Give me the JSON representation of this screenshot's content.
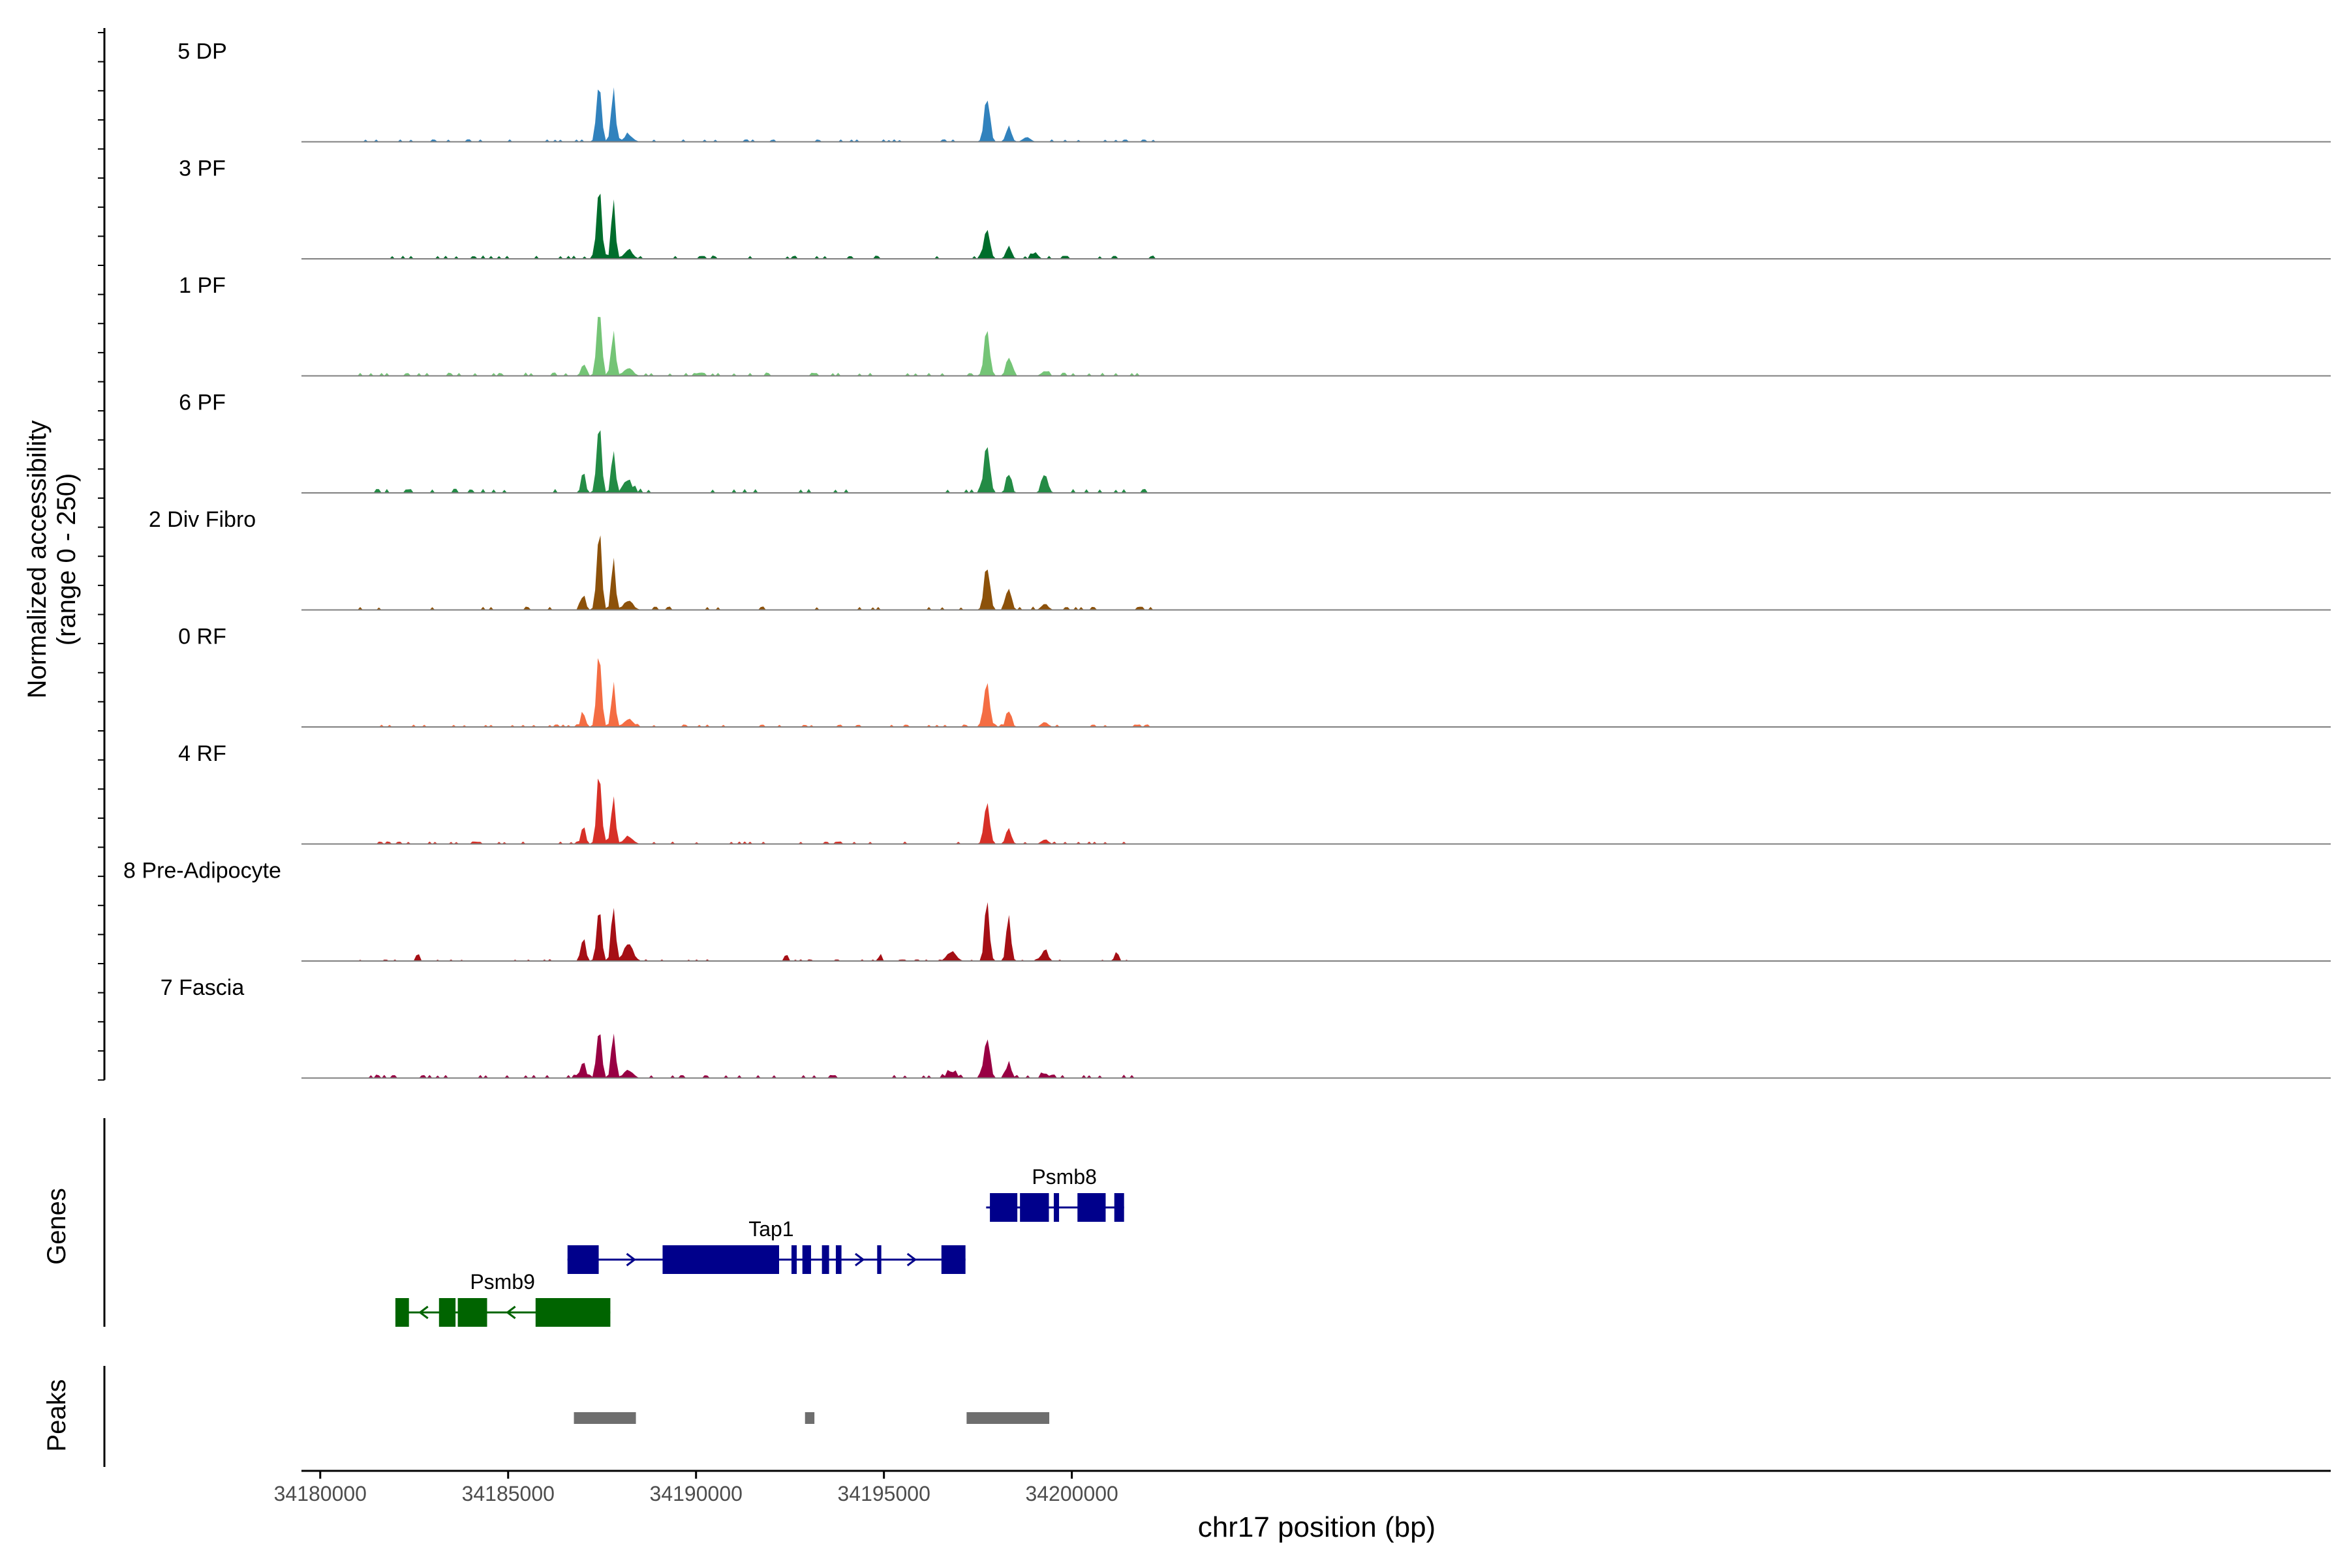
{
  "chart_data": {
    "type": "area",
    "title": "",
    "xlabel": "chr17 position (bp)",
    "ylabel_line1": "Normalized accessibility",
    "ylabel_line2": "(range 0 - 250)",
    "y_range": [
      0,
      250
    ],
    "x_range": [
      34179500,
      34233500
    ],
    "x_ticks": [
      {
        "value": 34180000,
        "label": "34180000"
      },
      {
        "value": 34185000,
        "label": "34185000"
      },
      {
        "value": 34190000,
        "label": "34190000"
      },
      {
        "value": 34195000,
        "label": "34195000"
      },
      {
        "value": 34200000,
        "label": "34200000"
      }
    ],
    "tracks": [
      {
        "name": "5 DP",
        "color": "#3182BD",
        "base_noise": 0.03,
        "peaks": [
          [
            34187420,
            65,
            0.8
          ],
          [
            34187800,
            55,
            0.68
          ],
          [
            34188200,
            120,
            0.08
          ],
          [
            34197740,
            75,
            0.55
          ],
          [
            34198320,
            70,
            0.2
          ],
          [
            34198800,
            100,
            0.06
          ]
        ]
      },
      {
        "name": "3 PF",
        "color": "#006D2C",
        "base_noise": 0.04,
        "peaks": [
          [
            34187420,
            65,
            0.9
          ],
          [
            34187800,
            55,
            0.72
          ],
          [
            34188200,
            120,
            0.1
          ],
          [
            34197740,
            75,
            0.42
          ],
          [
            34198320,
            70,
            0.16
          ],
          [
            34199020,
            80,
            0.08
          ]
        ]
      },
      {
        "name": "1 PF",
        "color": "#74C476",
        "base_noise": 0.04,
        "peaks": [
          [
            34187420,
            65,
            0.92
          ],
          [
            34187800,
            55,
            0.62
          ],
          [
            34187000,
            60,
            0.15
          ],
          [
            34188200,
            120,
            0.1
          ],
          [
            34197740,
            75,
            0.55
          ],
          [
            34198320,
            70,
            0.25
          ],
          [
            34199280,
            90,
            0.06
          ]
        ]
      },
      {
        "name": "6 PF",
        "color": "#238B45",
        "base_noise": 0.05,
        "peaks": [
          [
            34187420,
            65,
            0.85
          ],
          [
            34187800,
            55,
            0.55
          ],
          [
            34187000,
            60,
            0.22
          ],
          [
            34188200,
            120,
            0.12
          ],
          [
            34197740,
            75,
            0.65
          ],
          [
            34198320,
            70,
            0.22
          ],
          [
            34199280,
            80,
            0.22
          ]
        ]
      },
      {
        "name": "2 Div Fibro",
        "color": "#8C510A",
        "base_noise": 0.04,
        "peaks": [
          [
            34187420,
            65,
            1.0
          ],
          [
            34187800,
            55,
            0.65
          ],
          [
            34187000,
            60,
            0.2
          ],
          [
            34188200,
            120,
            0.12
          ],
          [
            34197740,
            75,
            0.58
          ],
          [
            34198320,
            70,
            0.28
          ],
          [
            34199280,
            90,
            0.08
          ]
        ]
      },
      {
        "name": "0 RF",
        "color": "#F46D43",
        "base_noise": 0.03,
        "peaks": [
          [
            34187420,
            65,
            0.93
          ],
          [
            34187800,
            55,
            0.55
          ],
          [
            34187000,
            60,
            0.18
          ],
          [
            34188200,
            120,
            0.1
          ],
          [
            34197740,
            75,
            0.55
          ],
          [
            34198320,
            70,
            0.2
          ],
          [
            34199280,
            90,
            0.06
          ]
        ]
      },
      {
        "name": "4 RF",
        "color": "#D73027",
        "base_noise": 0.03,
        "peaks": [
          [
            34187420,
            65,
            0.9
          ],
          [
            34187800,
            55,
            0.63
          ],
          [
            34187000,
            60,
            0.2
          ],
          [
            34188200,
            120,
            0.1
          ],
          [
            34197740,
            75,
            0.52
          ],
          [
            34198320,
            70,
            0.2
          ],
          [
            34199280,
            90,
            0.06
          ]
        ]
      },
      {
        "name": "8 Pre-Adipocyte",
        "color": "#A50F15",
        "base_noise": 0.02,
        "peaks": [
          [
            34187420,
            65,
            0.62
          ],
          [
            34187800,
            55,
            0.75
          ],
          [
            34187000,
            60,
            0.3
          ],
          [
            34188200,
            120,
            0.22
          ],
          [
            34182600,
            40,
            0.1
          ],
          [
            34192400,
            40,
            0.1
          ],
          [
            34194900,
            40,
            0.1
          ],
          [
            34196800,
            120,
            0.12
          ],
          [
            34197740,
            60,
            0.8
          ],
          [
            34198320,
            60,
            0.55
          ],
          [
            34199280,
            80,
            0.15
          ],
          [
            34201200,
            40,
            0.14
          ]
        ]
      },
      {
        "name": "7 Fascia",
        "color": "#980043",
        "base_noise": 0.04,
        "peaks": [
          [
            34187420,
            65,
            0.65
          ],
          [
            34187800,
            55,
            0.62
          ],
          [
            34187000,
            60,
            0.22
          ],
          [
            34188200,
            120,
            0.1
          ],
          [
            34197740,
            75,
            0.55
          ],
          [
            34198320,
            70,
            0.18
          ],
          [
            34196800,
            120,
            0.08
          ],
          [
            34199280,
            90,
            0.06
          ]
        ]
      }
    ],
    "genes": {
      "label": "Genes",
      "items": [
        {
          "name": "Psmb8",
          "strand": "-",
          "color": "#00008B",
          "row": 0,
          "start": 34197720,
          "end": 34201390,
          "exons": [
            [
              34197820,
              34198550
            ],
            [
              34198620,
              34199390
            ],
            [
              34199520,
              34199660
            ],
            [
              34200150,
              34200900
            ],
            [
              34201130,
              34201390
            ]
          ]
        },
        {
          "name": "Tap1",
          "strand": "+",
          "color": "#00008B",
          "row": 1,
          "start": 34186580,
          "end": 34197170,
          "exons": [
            [
              34186580,
              34187410
            ],
            [
              34189110,
              34192210
            ],
            [
              34192540,
              34192680
            ],
            [
              34192830,
              34193060
            ],
            [
              34193350,
              34193540
            ],
            [
              34193720,
              34193870
            ],
            [
              34194820,
              34194930
            ],
            [
              34196530,
              34197170
            ]
          ]
        },
        {
          "name": "Psmb9",
          "strand": "-",
          "color": "#006400",
          "row": 2,
          "start": 34182000,
          "end": 34187720,
          "exons": [
            [
              34182000,
              34182360
            ],
            [
              34183160,
              34183600
            ],
            [
              34183660,
              34184440
            ],
            [
              34185730,
              34187720
            ]
          ]
        }
      ]
    },
    "peaks": {
      "label": "Peaks",
      "color": "#6E6E6E",
      "items": [
        [
          34186750,
          34188400
        ],
        [
          34192900,
          34193150
        ],
        [
          34197200,
          34199400
        ]
      ]
    }
  }
}
